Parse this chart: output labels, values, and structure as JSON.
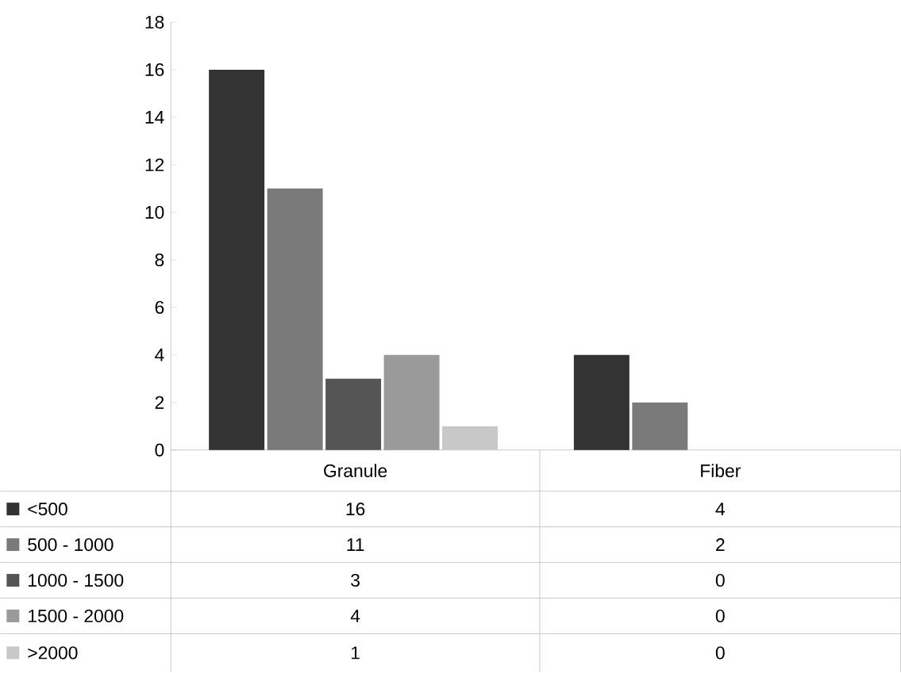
{
  "chart_data": {
    "type": "bar",
    "categories": [
      "Granule",
      "Fiber"
    ],
    "series": [
      {
        "name": "<500",
        "color": "#333333",
        "values": [
          16,
          4
        ]
      },
      {
        "name": "500 - 1000",
        "color": "#7a7a7a",
        "values": [
          11,
          2
        ]
      },
      {
        "name": "1000 - 1500",
        "color": "#555555",
        "values": [
          3,
          0
        ]
      },
      {
        "name": "1500 - 2000",
        "color": "#9a9a9a",
        "values": [
          4,
          0
        ]
      },
      {
        "name": ">2000",
        "color": "#c8c8c8",
        "values": [
          1,
          0
        ]
      }
    ],
    "ylim": [
      0,
      18
    ],
    "yticks": [
      0,
      2,
      4,
      6,
      8,
      10,
      12,
      14,
      16,
      18
    ],
    "grid": false,
    "legend": "bottom",
    "data_labels": true
  }
}
